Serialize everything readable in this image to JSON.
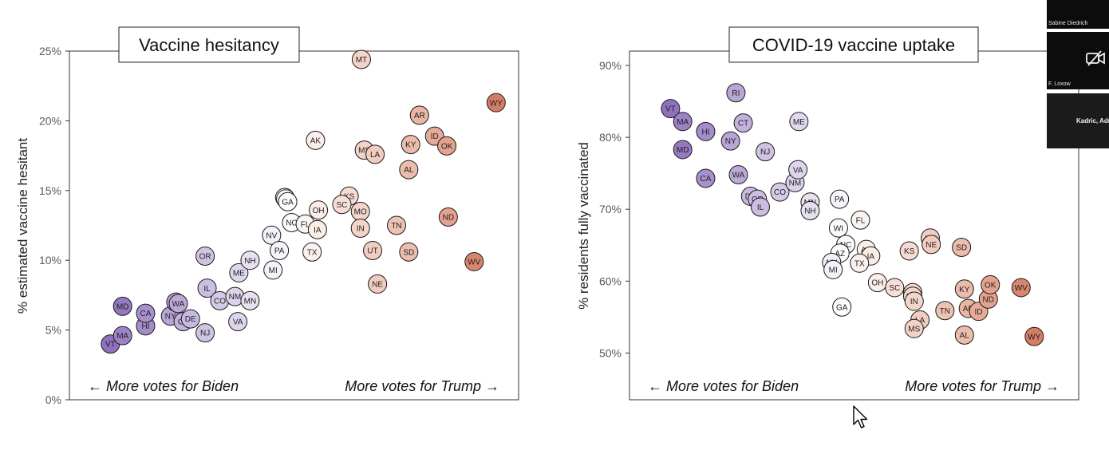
{
  "participants": [
    {
      "name": "Sabine Diedrich"
    },
    {
      "name": "F. Loxow",
      "icon": "video-off-icon"
    },
    {
      "name": "Kadric, Adn"
    }
  ],
  "chart_data": [
    {
      "type": "scatter",
      "title": "Vaccine hesitancy",
      "ylabel": "% estimated vaccine hesitant",
      "xlabel": "",
      "footer_left": "← More votes for Biden",
      "footer_right": "More votes for Trump →",
      "xlim": [
        -0.44,
        0.48
      ],
      "ylim": [
        0,
        25
      ],
      "yticks": [
        0,
        5,
        10,
        15,
        20,
        25
      ],
      "ytick_labels": [
        "0%",
        "5%",
        "10%",
        "15%",
        "20%",
        "25%"
      ],
      "points": [
        {
          "s": "VT",
          "x": -0.356,
          "y": 4.0,
          "c": "#8f72bd"
        },
        {
          "s": "MA",
          "x": -0.331,
          "y": 4.6,
          "c": "#9d82c5"
        },
        {
          "s": "MD",
          "x": -0.331,
          "y": 6.7,
          "c": "#9678c1"
        },
        {
          "s": "HI",
          "x": -0.284,
          "y": 5.3,
          "c": "#a58dca"
        },
        {
          "s": "CA",
          "x": -0.284,
          "y": 6.2,
          "c": "#a791cc"
        },
        {
          "s": "NY",
          "x": -0.233,
          "y": 6.0,
          "c": "#b8a4d5"
        },
        {
          "s": "RI",
          "x": -0.222,
          "y": 7.0,
          "c": "#b9a6d6"
        },
        {
          "s": "WA",
          "x": -0.217,
          "y": 6.9,
          "c": "#bba9d8"
        },
        {
          "s": "CT",
          "x": -0.207,
          "y": 5.6,
          "c": "#c2b2dc"
        },
        {
          "s": "DE",
          "x": -0.192,
          "y": 5.8,
          "c": "#c8b9df"
        },
        {
          "s": "NJ",
          "x": -0.162,
          "y": 4.8,
          "c": "#d0c3e4"
        },
        {
          "s": "OR",
          "x": -0.162,
          "y": 10.3,
          "c": "#cfc2e4"
        },
        {
          "s": "IL",
          "x": -0.158,
          "y": 8.0,
          "c": "#cbbee2"
        },
        {
          "s": "CO",
          "x": -0.132,
          "y": 7.1,
          "c": "#d5cae6"
        },
        {
          "s": "NM",
          "x": -0.101,
          "y": 7.4,
          "c": "#dcd3ea"
        },
        {
          "s": "VA",
          "x": -0.095,
          "y": 5.6,
          "c": "#ded5eb"
        },
        {
          "s": "ME",
          "x": -0.093,
          "y": 9.1,
          "c": "#dfd7ec"
        },
        {
          "s": "MN",
          "x": -0.07,
          "y": 7.1,
          "c": "#e6e0f0"
        },
        {
          "s": "NH",
          "x": -0.07,
          "y": 10.0,
          "c": "#e6e0f0"
        },
        {
          "s": "MI",
          "x": -0.023,
          "y": 9.3,
          "c": "#f4f1f8"
        },
        {
          "s": "NV",
          "x": -0.026,
          "y": 11.8,
          "c": "#f3f0f7"
        },
        {
          "s": "PA",
          "x": -0.01,
          "y": 10.7,
          "c": "#f7f5fa"
        },
        {
          "s": "WI",
          "x": 0.001,
          "y": 14.5,
          "c": "#fbfbfc"
        },
        {
          "s": "AZ",
          "x": 0.003,
          "y": 14.4,
          "c": "#fbfbfc"
        },
        {
          "s": "GA",
          "x": 0.007,
          "y": 14.2,
          "c": "#fcfbfc"
        },
        {
          "s": "NC",
          "x": 0.015,
          "y": 12.7,
          "c": "#fcfbfb"
        },
        {
          "s": "FL",
          "x": 0.043,
          "y": 12.6,
          "c": "#fcf4f1"
        },
        {
          "s": "TX",
          "x": 0.057,
          "y": 10.6,
          "c": "#fbf0ec"
        },
        {
          "s": "AK",
          "x": 0.064,
          "y": 18.6,
          "c": "#fbeee9"
        },
        {
          "s": "OH",
          "x": 0.07,
          "y": 13.6,
          "c": "#faece7"
        },
        {
          "s": "IA",
          "x": 0.068,
          "y": 12.2,
          "c": "#faede8"
        },
        {
          "s": "KS",
          "x": 0.133,
          "y": 14.6,
          "c": "#f6dbd2"
        },
        {
          "s": "SC",
          "x": 0.118,
          "y": 14.0,
          "c": "#f7dfd7"
        },
        {
          "s": "MO",
          "x": 0.156,
          "y": 13.5,
          "c": "#f4d5ca"
        },
        {
          "s": "IN",
          "x": 0.156,
          "y": 12.3,
          "c": "#f4d5ca"
        },
        {
          "s": "MT",
          "x": 0.158,
          "y": 24.4,
          "c": "#f4d4c9"
        },
        {
          "s": "MS",
          "x": 0.164,
          "y": 17.9,
          "c": "#f3d2c7"
        },
        {
          "s": "LA",
          "x": 0.186,
          "y": 17.6,
          "c": "#f1cdc0"
        },
        {
          "s": "UT",
          "x": 0.181,
          "y": 10.7,
          "c": "#f2cec2"
        },
        {
          "s": "NE",
          "x": 0.191,
          "y": 8.3,
          "c": "#f1cbbe"
        },
        {
          "s": "TN",
          "x": 0.23,
          "y": 12.5,
          "c": "#eec2b3"
        },
        {
          "s": "SD",
          "x": 0.255,
          "y": 10.6,
          "c": "#ecbcac"
        },
        {
          "s": "AL",
          "x": 0.255,
          "y": 16.5,
          "c": "#ecbcac"
        },
        {
          "s": "KY",
          "x": 0.259,
          "y": 18.3,
          "c": "#ebbbab"
        },
        {
          "s": "AR",
          "x": 0.277,
          "y": 20.4,
          "c": "#eab5a4"
        },
        {
          "s": "ID",
          "x": 0.308,
          "y": 18.9,
          "c": "#e6ab98"
        },
        {
          "s": "OK",
          "x": 0.333,
          "y": 18.2,
          "c": "#e3a38f"
        },
        {
          "s": "ND",
          "x": 0.336,
          "y": 13.1,
          "c": "#e3a28e"
        },
        {
          "s": "WV",
          "x": 0.389,
          "y": 9.9,
          "c": "#d8866f"
        },
        {
          "s": "WY",
          "x": 0.434,
          "y": 21.3,
          "c": "#d37c66"
        }
      ]
    },
    {
      "type": "scatter",
      "title": "COVID-19 vaccine uptake",
      "ylabel": "% residents fully vaccinated",
      "xlabel": "",
      "footer_left": "← More votes for Biden",
      "footer_right": "More votes for Trump →",
      "xlim": [
        -0.44,
        0.48
      ],
      "ylim": [
        43.5,
        92
      ],
      "yticks": [
        50,
        60,
        70,
        80,
        90
      ],
      "ytick_labels": [
        "50%",
        "60%",
        "70%",
        "80%",
        "90%"
      ],
      "points": [
        {
          "s": "VT",
          "x": -0.356,
          "y": 84.0,
          "c": "#8f72bd"
        },
        {
          "s": "MA",
          "x": -0.331,
          "y": 82.2,
          "c": "#9d82c5"
        },
        {
          "s": "MD",
          "x": -0.331,
          "y": 78.3,
          "c": "#9678c1"
        },
        {
          "s": "HI",
          "x": -0.284,
          "y": 80.8,
          "c": "#a58dca"
        },
        {
          "s": "CA",
          "x": -0.284,
          "y": 74.3,
          "c": "#a791cc"
        },
        {
          "s": "NY",
          "x": -0.233,
          "y": 79.5,
          "c": "#b8a4d5"
        },
        {
          "s": "RI",
          "x": -0.222,
          "y": 86.2,
          "c": "#b9a6d6"
        },
        {
          "s": "WA",
          "x": -0.217,
          "y": 74.8,
          "c": "#bba9d8"
        },
        {
          "s": "CT",
          "x": -0.207,
          "y": 82.0,
          "c": "#c2b2dc"
        },
        {
          "s": "DE",
          "x": -0.192,
          "y": 71.8,
          "c": "#c8b9df"
        },
        {
          "s": "OR",
          "x": -0.178,
          "y": 71.4,
          "c": "#cbbee2"
        },
        {
          "s": "IL",
          "x": -0.172,
          "y": 70.3,
          "c": "#cbbee2"
        },
        {
          "s": "NJ",
          "x": -0.162,
          "y": 78.0,
          "c": "#d0c3e4"
        },
        {
          "s": "CO",
          "x": -0.132,
          "y": 72.4,
          "c": "#d5cae6"
        },
        {
          "s": "NM",
          "x": -0.101,
          "y": 73.7,
          "c": "#dcd3ea"
        },
        {
          "s": "VA",
          "x": -0.095,
          "y": 75.5,
          "c": "#ded5eb"
        },
        {
          "s": "ME",
          "x": -0.093,
          "y": 82.2,
          "c": "#dfd7ec"
        },
        {
          "s": "MN",
          "x": -0.07,
          "y": 71.0,
          "c": "#e6e0f0"
        },
        {
          "s": "NH",
          "x": -0.07,
          "y": 69.8,
          "c": "#e6e0f0"
        },
        {
          "s": "PA",
          "x": -0.01,
          "y": 71.4,
          "c": "#f7f5fa"
        },
        {
          "s": "FL",
          "x": 0.033,
          "y": 68.5,
          "c": "#fcf4f1"
        },
        {
          "s": "WI",
          "x": -0.012,
          "y": 67.4,
          "c": "#fbfbfc"
        },
        {
          "s": "NC",
          "x": 0.003,
          "y": 65.1,
          "c": "#fcfbfb"
        },
        {
          "s": "AZ",
          "x": -0.009,
          "y": 63.9,
          "c": "#fbfbfc"
        },
        {
          "s": "NV",
          "x": -0.026,
          "y": 62.6,
          "c": "#f3f0f7"
        },
        {
          "s": "MI",
          "x": -0.023,
          "y": 61.6,
          "c": "#f4f1f8"
        },
        {
          "s": "AK",
          "x": 0.045,
          "y": 64.4,
          "c": "#fbeee9"
        },
        {
          "s": "IA",
          "x": 0.054,
          "y": 63.5,
          "c": "#faede8"
        },
        {
          "s": "TX",
          "x": 0.031,
          "y": 62.5,
          "c": "#fbf0ec"
        },
        {
          "s": "GA",
          "x": -0.005,
          "y": 56.4,
          "c": "#fcfbfc"
        },
        {
          "s": "OH",
          "x": 0.068,
          "y": 59.8,
          "c": "#faece7"
        },
        {
          "s": "SC",
          "x": 0.103,
          "y": 59.1,
          "c": "#f7dfd7"
        },
        {
          "s": "KS",
          "x": 0.133,
          "y": 64.2,
          "c": "#f6dbd2"
        },
        {
          "s": "MT",
          "x": 0.14,
          "y": 58.4,
          "c": "#f4d4c9"
        },
        {
          "s": "MO",
          "x": 0.14,
          "y": 57.9,
          "c": "#f4d5ca"
        },
        {
          "s": "IN",
          "x": 0.143,
          "y": 57.2,
          "c": "#f4d5ca"
        },
        {
          "s": "UT",
          "x": 0.176,
          "y": 66.0,
          "c": "#f2cec2"
        },
        {
          "s": "NE",
          "x": 0.178,
          "y": 65.1,
          "c": "#f1cbbe"
        },
        {
          "s": "LA",
          "x": 0.155,
          "y": 54.6,
          "c": "#f1cdc0"
        },
        {
          "s": "MS",
          "x": 0.143,
          "y": 53.4,
          "c": "#f3d2c7"
        },
        {
          "s": "TN",
          "x": 0.206,
          "y": 55.9,
          "c": "#eec2b3"
        },
        {
          "s": "SD",
          "x": 0.24,
          "y": 64.7,
          "c": "#ecbcac"
        },
        {
          "s": "KY",
          "x": 0.246,
          "y": 58.9,
          "c": "#ebbbab"
        },
        {
          "s": "AR",
          "x": 0.254,
          "y": 56.2,
          "c": "#eab5a4"
        },
        {
          "s": "AL",
          "x": 0.246,
          "y": 52.5,
          "c": "#ecbcac"
        },
        {
          "s": "ID",
          "x": 0.275,
          "y": 55.8,
          "c": "#e6ab98"
        },
        {
          "s": "ND",
          "x": 0.295,
          "y": 57.5,
          "c": "#e3a28e"
        },
        {
          "s": "OK",
          "x": 0.299,
          "y": 59.5,
          "c": "#e3a38f"
        },
        {
          "s": "WV",
          "x": 0.362,
          "y": 59.1,
          "c": "#d8866f"
        },
        {
          "s": "WY",
          "x": 0.389,
          "y": 52.3,
          "c": "#d37c66"
        }
      ]
    }
  ]
}
